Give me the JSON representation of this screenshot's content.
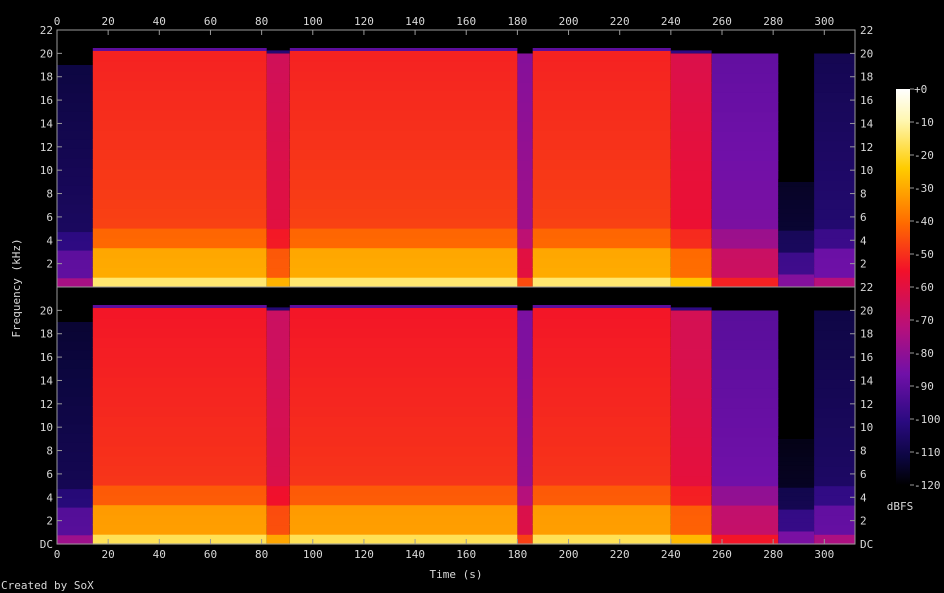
{
  "chart_data": {
    "type": "heatmap",
    "title": "",
    "xlabel": "Time (s)",
    "ylabel": "Frequency (kHz)",
    "xlim": [
      0,
      312
    ],
    "ylim": [
      0,
      22
    ],
    "x_ticks": [
      "0",
      "20",
      "40",
      "60",
      "80",
      "100",
      "120",
      "140",
      "160",
      "180",
      "200",
      "220",
      "240",
      "260",
      "280",
      "300"
    ],
    "x_tick_values": [
      0,
      20,
      40,
      60,
      80,
      100,
      120,
      140,
      160,
      180,
      200,
      220,
      240,
      260,
      280,
      300
    ],
    "y_ticks_left_top": [
      "2",
      "4",
      "6",
      "8",
      "10",
      "12",
      "14",
      "16",
      "18",
      "20",
      "22"
    ],
    "y_ticks_left_bottom": [
      "DC",
      "2",
      "4",
      "6",
      "8",
      "10",
      "12",
      "14",
      "16",
      "18",
      "20"
    ],
    "y_ticks_right_top": [
      "2",
      "4",
      "6",
      "8",
      "10",
      "12",
      "14",
      "16",
      "18",
      "20",
      "22"
    ],
    "y_ticks_right_bottom": [
      "DC",
      "2",
      "4",
      "6",
      "8",
      "10",
      "12",
      "14",
      "16",
      "18",
      "20",
      "22"
    ],
    "channels": 2,
    "colorbar": {
      "label": "dBFS",
      "range": [
        -120,
        0
      ],
      "ticks": [
        "+0",
        "-10",
        "-20",
        "-30",
        "-40",
        "-50",
        "-60",
        "-70",
        "-80",
        "-90",
        "-100",
        "-110",
        "-120"
      ],
      "tick_values": [
        0,
        -10,
        -20,
        -30,
        -40,
        -50,
        -60,
        -70,
        -80,
        -90,
        -100,
        -110,
        -120
      ]
    },
    "segments": [
      {
        "start": 0,
        "end": 14,
        "level": -105,
        "cutoff_khz": 19
      },
      {
        "start": 14,
        "end": 82,
        "level": -45,
        "cutoff_khz": 20.2
      },
      {
        "start": 82,
        "end": 91,
        "level": -58,
        "cutoff_khz": 20
      },
      {
        "start": 91,
        "end": 180,
        "level": -45,
        "cutoff_khz": 20.2
      },
      {
        "start": 180,
        "end": 186,
        "level": -75,
        "cutoff_khz": 20
      },
      {
        "start": 186,
        "end": 240,
        "level": -45,
        "cutoff_khz": 20.2
      },
      {
        "start": 240,
        "end": 256,
        "level": -55,
        "cutoff_khz": 20
      },
      {
        "start": 256,
        "end": 282,
        "level": -82,
        "cutoff_khz": 20
      },
      {
        "start": 282,
        "end": 296,
        "level": -112,
        "cutoff_khz": 9
      },
      {
        "start": 296,
        "end": 312,
        "level": -102,
        "cutoff_khz": 20
      }
    ]
  },
  "credit": "Created by SoX"
}
